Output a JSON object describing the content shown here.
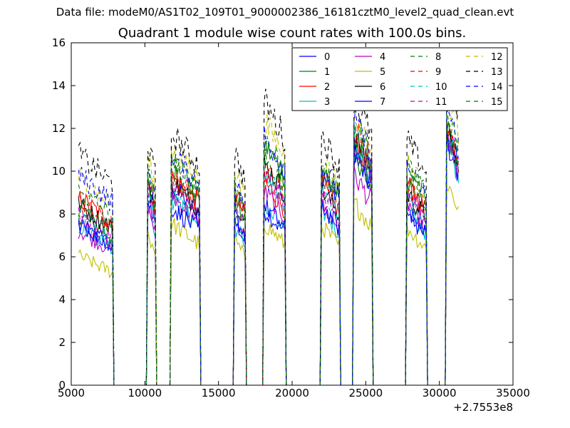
{
  "suptitle": "Data file: modeM0/AS1T02_109T01_9000002386_16181cztM0_level2_quad_clean.evt",
  "chart_data": {
    "type": "line",
    "title": "Quadrant 1 module wise count rates with 100.0s bins.",
    "xlabel": "",
    "ylabel": "",
    "x_offset_label": "+2.7553e8",
    "xlim": [
      5000,
      35000
    ],
    "ylim": [
      0,
      16
    ],
    "xticks": [
      5000,
      10000,
      15000,
      20000,
      25000,
      30000,
      35000
    ],
    "xtick_labels": [
      "5000",
      "10000",
      "15000",
      "20000",
      "25000",
      "30000",
      "35000"
    ],
    "yticks": [
      0,
      2,
      4,
      6,
      8,
      10,
      12,
      14,
      16
    ],
    "ytick_labels": [
      "0",
      "2",
      "4",
      "6",
      "8",
      "10",
      "12",
      "14",
      "16"
    ],
    "grid": false,
    "legend_position": "top-right",
    "legend_columns": 4,
    "segments": [
      {
        "start": 5500,
        "end": 7800
      },
      {
        "start": 10200,
        "end": 10700
      },
      {
        "start": 11800,
        "end": 13700
      },
      {
        "start": 16100,
        "end": 16800
      },
      {
        "start": 18100,
        "end": 19500
      },
      {
        "start": 22000,
        "end": 23200
      },
      {
        "start": 24200,
        "end": 25400
      },
      {
        "start": 27800,
        "end": 29100
      },
      {
        "start": 30500,
        "end": 31300
      }
    ],
    "series": [
      {
        "name": "0",
        "color": "#0000ff",
        "dash": "solid",
        "levels": [
          6.9,
          8.2,
          8.6,
          7.1,
          7.6,
          9.2,
          9.9,
          7.6,
          10.9
        ]
      },
      {
        "name": "1",
        "color": "#008000",
        "dash": "solid",
        "levels": [
          7.4,
          8.6,
          9.3,
          8.1,
          10.4,
          9.4,
          10.0,
          8.6,
          11.1
        ]
      },
      {
        "name": "2",
        "color": "#ff0000",
        "dash": "solid",
        "levels": [
          8.1,
          8.9,
          9.0,
          8.4,
          8.8,
          8.6,
          10.6,
          8.7,
          11.3
        ]
      },
      {
        "name": "3",
        "color": "#00bfbf",
        "dash": "solid",
        "levels": [
          6.9,
          7.8,
          8.0,
          6.9,
          7.7,
          7.6,
          10.3,
          7.6,
          10.5
        ]
      },
      {
        "name": "4",
        "color": "#bf00bf",
        "dash": "solid",
        "levels": [
          6.7,
          7.7,
          8.2,
          7.3,
          8.4,
          7.8,
          9.1,
          7.9,
          10.6
        ]
      },
      {
        "name": "5",
        "color": "#bfbf00",
        "dash": "solid",
        "levels": [
          5.6,
          6.6,
          7.0,
          6.3,
          7.0,
          6.9,
          7.9,
          6.8,
          8.8
        ]
      },
      {
        "name": "6",
        "color": "#000000",
        "dash": "solid",
        "levels": [
          7.8,
          8.8,
          8.8,
          8.1,
          9.6,
          8.5,
          10.8,
          8.3,
          10.8
        ]
      },
      {
        "name": "7",
        "color": "#0000ff",
        "dash": "solid",
        "levels": [
          7.0,
          8.0,
          7.7,
          7.4,
          7.8,
          7.8,
          10.2,
          7.4,
          10.6
        ]
      },
      {
        "name": "8",
        "color": "#008000",
        "dash": "dashed",
        "levels": [
          7.7,
          9.3,
          9.6,
          8.4,
          9.8,
          9.4,
          10.7,
          9.5,
          11.0
        ]
      },
      {
        "name": "9",
        "color": "#ff0000",
        "dash": "dashed",
        "levels": [
          7.9,
          8.6,
          9.1,
          8.7,
          9.4,
          9.2,
          11.2,
          8.7,
          11.2
        ]
      },
      {
        "name": "10",
        "color": "#00bfbf",
        "dash": "dashed",
        "levels": [
          7.3,
          8.3,
          8.5,
          7.7,
          9.1,
          8.4,
          10.9,
          8.3,
          10.8
        ]
      },
      {
        "name": "11",
        "color": "#bf00bf",
        "dash": "dashed",
        "levels": [
          7.3,
          8.3,
          8.5,
          7.8,
          9.1,
          8.3,
          10.4,
          8.2,
          10.8
        ]
      },
      {
        "name": "12",
        "color": "#bfbf00",
        "dash": "dashed",
        "levels": [
          9.0,
          9.8,
          10.2,
          9.4,
          11.4,
          9.9,
          11.7,
          9.6,
          12.6
        ]
      },
      {
        "name": "13",
        "color": "#000000",
        "dash": "dashed",
        "levels": [
          10.0,
          10.4,
          10.9,
          10.1,
          12.3,
          10.8,
          12.4,
          10.6,
          13.6
        ]
      },
      {
        "name": "14",
        "color": "#0000ff",
        "dash": "dashed",
        "levels": [
          9.1,
          9.2,
          10.0,
          8.9,
          10.8,
          9.6,
          11.5,
          9.4,
          12.0
        ]
      },
      {
        "name": "15",
        "color": "#008000",
        "dash": "dashed",
        "levels": [
          8.4,
          9.0,
          9.7,
          8.8,
          10.7,
          9.4,
          11.4,
          9.4,
          12.0
        ]
      }
    ]
  }
}
